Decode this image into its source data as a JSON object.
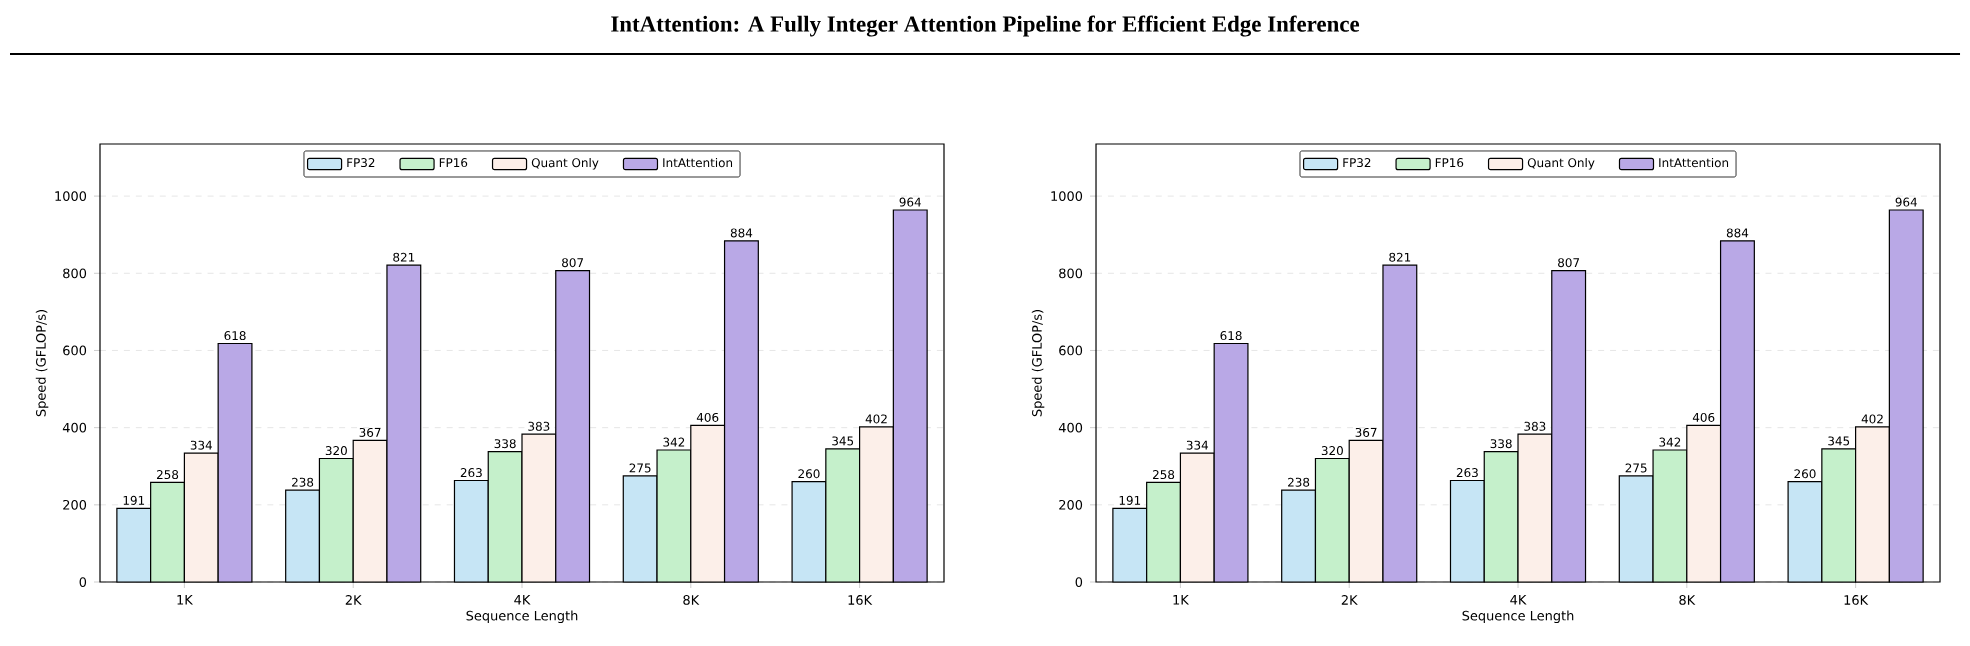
{
  "chart_data": [
    {
      "type": "bar",
      "title": "IntAttention: A Fully Integer Attention Pipeline for Efficient Edge Inference",
      "xlabel": "Sequence Length",
      "ylabel": "Speed (GFLOP/s)",
      "categories": [
        "1K",
        "2K",
        "4K",
        "8K",
        "16K"
      ],
      "series": [
        {
          "name": "FP32",
          "color": "#c6e5f5",
          "values": [
            191,
            238,
            263,
            275,
            260
          ]
        },
        {
          "name": "FP16",
          "color": "#c5f0cb",
          "values": [
            258,
            320,
            338,
            342,
            345
          ]
        },
        {
          "name": "Quant Only",
          "color": "#fcefe9",
          "values": [
            334,
            367,
            383,
            406,
            402
          ]
        },
        {
          "name": "IntAttention",
          "color": "#b9a8e6",
          "values": [
            618,
            821,
            807,
            884,
            964
          ]
        }
      ],
      "ylim": [
        0,
        1135
      ],
      "yticks": [
        0,
        200,
        400,
        600,
        800,
        1000
      ],
      "grid": "y",
      "legend": "top",
      "data_labels": true
    },
    {
      "type": "bar",
      "xlabel": "Sequence Length",
      "ylabel": "Speed (GFLOP/s)",
      "categories": [
        "1K",
        "2K",
        "4K",
        "8K",
        "16K"
      ],
      "series": [
        {
          "name": "FP32",
          "color": "#c6e5f5",
          "values": [
            191,
            238,
            263,
            275,
            260
          ]
        },
        {
          "name": "FP16",
          "color": "#c5f0cb",
          "values": [
            258,
            320,
            338,
            342,
            345
          ]
        },
        {
          "name": "Quant Only",
          "color": "#fcefe9",
          "values": [
            334,
            367,
            383,
            406,
            402
          ]
        },
        {
          "name": "IntAttention",
          "color": "#b9a8e6",
          "values": [
            618,
            821,
            807,
            884,
            964
          ]
        }
      ],
      "ylim": [
        0,
        1135
      ],
      "yticks": [
        0,
        200,
        400,
        600,
        800,
        1000
      ],
      "grid": "y",
      "legend": "top",
      "data_labels": true
    }
  ]
}
